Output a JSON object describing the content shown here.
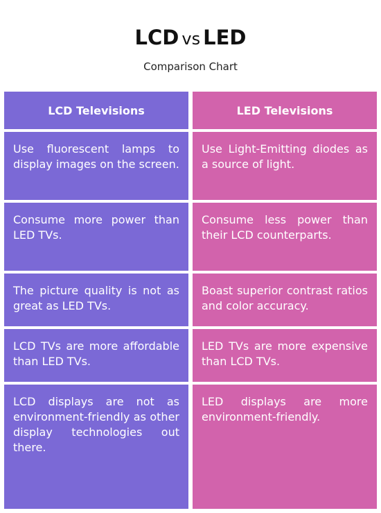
{
  "header": {
    "title_left": "LCD",
    "title_vs": "vs",
    "title_right": "LED",
    "subtitle": "Comparison Chart"
  },
  "columns": {
    "lcd": {
      "heading": "LCD Televisions",
      "color": "#7b69d6",
      "rows": [
        "Use fluorescent lamps to display images on the screen.",
        "Consume more power than LED TVs.",
        "The picture quality is not as great as LED TVs.",
        "LCD TVs are more affordable than LED TVs.",
        "LCD displays are not as environment-friendly as other display technologies out there."
      ]
    },
    "led": {
      "heading": "LED Televisions",
      "color": "#d263ac",
      "rows": [
        "Use Light-Emitting diodes as a source of light.",
        "Consume less power than their LCD counterparts.",
        "Boast superior contrast ratios and color accuracy.",
        "LED TVs are more expensive than LCD TVs.",
        "LED displays are more environment-friendly."
      ]
    }
  }
}
